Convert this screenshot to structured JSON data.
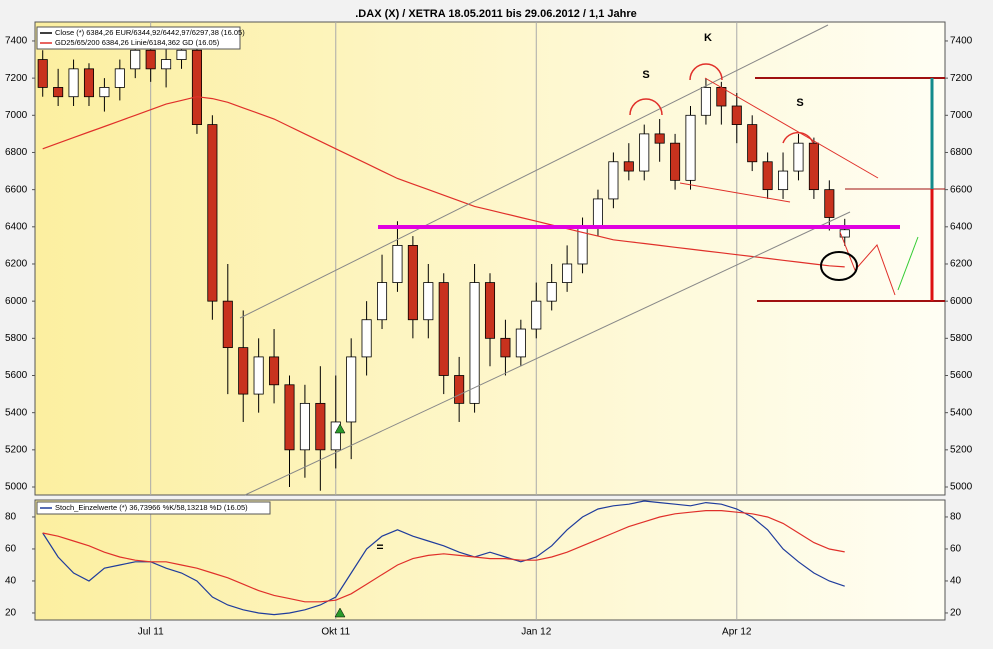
{
  "chart_data": [
    {
      "type": "candlestick",
      "title": ".DAX (X) / XETRA 18.05.2011 bis 29.06.2012 / 1,1 Jahre",
      "ylim": [
        4957,
        7502
      ],
      "yticks": [
        5000,
        5200,
        5400,
        5600,
        5800,
        6000,
        6200,
        6400,
        6600,
        6800,
        7000,
        7200,
        7400
      ],
      "x_grid": true,
      "annotations": [
        "S",
        "K",
        "S"
      ],
      "series": [
        {
          "name": "Close (*) 6384,26 EUR/6344,92/6442,97/6297,38 (16.05)",
          "type": "candlestick",
          "up_color": "#ffffff",
          "down_color": "#c8321e",
          "color": "#000000",
          "open": [
            7300,
            7150,
            7100,
            7250,
            7100,
            7150,
            7250,
            7350,
            7250,
            7300,
            7350,
            6950,
            6000,
            5750,
            5500,
            5700,
            5550,
            5200,
            5450,
            5200,
            5350,
            5700,
            5900,
            6100,
            6300,
            5900,
            6100,
            5600,
            5450,
            6100,
            5800,
            5700,
            5850,
            6000,
            6100,
            6200,
            6400,
            6550,
            6750,
            6700,
            6900,
            6850,
            6650,
            7000,
            7150,
            7050,
            6950,
            6750,
            6600,
            6700,
            6850,
            6600,
            6344.92,
            null,
            null,
            null,
            null,
            null,
            null
          ],
          "high": [
            7350,
            7250,
            7300,
            7280,
            7200,
            7300,
            7400,
            7450,
            7380,
            7420,
            7380,
            7000,
            6200,
            5950,
            5800,
            5850,
            5600,
            5550,
            5650,
            5600,
            5800,
            6000,
            6250,
            6430,
            6350,
            6200,
            6150,
            5700,
            6200,
            6150,
            5900,
            5900,
            6100,
            6200,
            6300,
            6450,
            6600,
            6800,
            6850,
            6950,
            6980,
            6900,
            7050,
            7200,
            7180,
            7120,
            7000,
            6800,
            6800,
            6900,
            6880,
            6650,
            6442.97,
            null,
            null,
            null,
            null,
            null,
            null
          ],
          "low": [
            7100,
            7050,
            7050,
            7050,
            7020,
            7080,
            7200,
            7180,
            7150,
            7250,
            6900,
            5900,
            5500,
            5350,
            5400,
            5450,
            5000,
            5050,
            4980,
            5100,
            5150,
            5600,
            5850,
            6050,
            5800,
            5800,
            5500,
            5350,
            5400,
            5650,
            5600,
            5650,
            5800,
            5950,
            6050,
            6150,
            6350,
            6500,
            6650,
            6650,
            6750,
            6600,
            6600,
            6950,
            6950,
            6850,
            6700,
            6550,
            6550,
            6650,
            6550,
            6380,
            6297.38,
            null,
            null,
            null,
            null,
            null,
            null
          ],
          "close": [
            7150,
            7100,
            7250,
            7100,
            7150,
            7250,
            7350,
            7250,
            7300,
            7350,
            6950,
            6000,
            5750,
            5500,
            5700,
            5550,
            5200,
            5450,
            5200,
            5350,
            5700,
            5900,
            6100,
            6300,
            5900,
            6100,
            5600,
            5450,
            6100,
            5800,
            5700,
            5850,
            6000,
            6100,
            6200,
            6400,
            6550,
            6750,
            6700,
            6900,
            6850,
            6650,
            7000,
            7150,
            7050,
            6950,
            6750,
            6600,
            6700,
            6850,
            6600,
            6450,
            6384.26,
            null,
            null,
            null,
            null,
            null,
            null
          ]
        },
        {
          "name": "GD25/65/200 6384,26 Linie/6184,362 GD (16.05)",
          "type": "line",
          "color": "#e0302a",
          "values": [
            6820,
            6850,
            6880,
            6910,
            6940,
            6970,
            7000,
            7030,
            7060,
            7080,
            7100,
            7090,
            7070,
            7040,
            7010,
            6980,
            6940,
            6900,
            6860,
            6820,
            6780,
            6740,
            6700,
            6660,
            6630,
            6600,
            6570,
            6540,
            6510,
            6490,
            6470,
            6450,
            6430,
            6410,
            6390,
            6370,
            6350,
            6330,
            6320,
            6310,
            6300,
            6290,
            6280,
            6270,
            6260,
            6250,
            6240,
            6230,
            6220,
            6210,
            6200,
            6190,
            6184.362,
            null,
            null,
            null,
            null,
            null,
            null
          ]
        }
      ]
    },
    {
      "type": "line",
      "ylim": [
        15.6,
        90.6
      ],
      "yticks": [
        20,
        40,
        60,
        80
      ],
      "x_grid": true,
      "annotations": [
        "="
      ],
      "categories": [
        null,
        null,
        null,
        null,
        null,
        null,
        null,
        "Jul 11",
        null,
        null,
        null,
        null,
        null,
        null,
        null,
        null,
        null,
        null,
        null,
        "Okt 11",
        null,
        null,
        null,
        null,
        null,
        null,
        null,
        null,
        null,
        null,
        null,
        null,
        "Jan 12",
        null,
        null,
        null,
        null,
        null,
        null,
        null,
        null,
        null,
        null,
        null,
        null,
        "Apr 12",
        null,
        null,
        null,
        null,
        null,
        null,
        null,
        null,
        null,
        null,
        null,
        null,
        null
      ],
      "series": [
        {
          "name": "Stoch_Einzelwerte (*) 36,73966 %K/58,13218 %D (16.05)",
          "color": "#1f3c9c",
          "values": [
            70,
            55,
            45,
            40,
            48,
            50,
            52,
            52,
            48,
            45,
            40,
            30,
            25,
            22,
            20,
            19,
            20,
            22,
            25,
            30,
            45,
            60,
            68,
            72,
            68,
            65,
            62,
            58,
            55,
            58,
            55,
            52,
            55,
            62,
            72,
            80,
            85,
            87,
            88,
            90,
            89,
            88,
            87,
            89,
            88,
            85,
            80,
            72,
            60,
            52,
            45,
            40,
            36.73966,
            null,
            null,
            null,
            null,
            null,
            null
          ]
        },
        {
          "color": "#e0302a",
          "values": [
            70,
            68,
            65,
            62,
            58,
            55,
            53,
            52,
            52,
            50,
            48,
            45,
            42,
            38,
            34,
            31,
            29,
            27,
            27,
            28,
            32,
            38,
            44,
            50,
            54,
            56,
            57,
            56,
            55,
            54,
            54,
            53,
            53,
            55,
            58,
            62,
            66,
            70,
            74,
            77,
            80,
            82,
            83,
            84,
            84,
            83,
            82,
            80,
            76,
            70,
            64,
            60,
            58.13218,
            null,
            null,
            null,
            null,
            null,
            null
          ]
        }
      ]
    }
  ]
}
